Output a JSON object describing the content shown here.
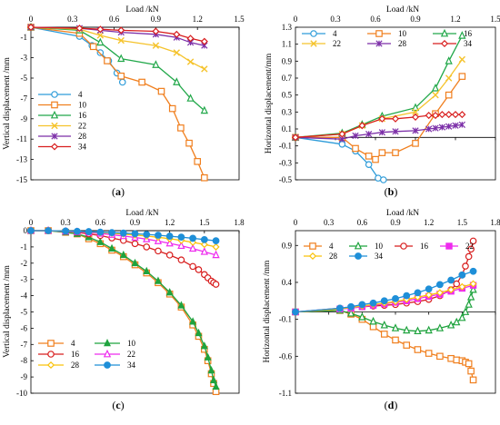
{
  "colors": {
    "4": "#2E9CD9",
    "10": "#F07F1E",
    "16": "#22A84A",
    "22": "#F5C32C",
    "28": "#7C2FA8",
    "34": "#D81E1E",
    "pink": "#EE2BEE",
    "yellow": "#F9C20A",
    "blue": "#1E8FD8",
    "darkgreen": "#1FA33E"
  },
  "chart_data": [
    {
      "type": "line",
      "label": "(a)",
      "title": "Load /kN",
      "xlabel": "Load /kN",
      "ylabel": "Vertical displacement /mm",
      "xlim": [
        0,
        1.5
      ],
      "ylim": [
        -15,
        0
      ],
      "xticks": [
        "0",
        "0.3",
        "0.6",
        "0.9",
        "1.2",
        "1.5"
      ],
      "yticks": [
        "-1",
        "-3",
        "-5",
        "-7",
        "-9",
        "-11",
        "-13",
        "-15"
      ],
      "legend": "bottom-left",
      "series": [
        {
          "name": "4",
          "marker": "circle",
          "x": [
            0,
            0.35,
            0.44,
            0.5,
            0.56,
            0.62,
            0.66
          ],
          "y": [
            0,
            -0.9,
            -1.8,
            -2.5,
            -3.3,
            -4.5,
            -5.4
          ]
        },
        {
          "name": "10",
          "marker": "square",
          "x": [
            0,
            0.35,
            0.45,
            0.55,
            0.65,
            0.8,
            0.94,
            1.02,
            1.08,
            1.14,
            1.2,
            1.25
          ],
          "y": [
            0,
            -0.6,
            -1.9,
            -3.3,
            -4.8,
            -5.4,
            -6.3,
            -8.0,
            -9.9,
            -11.4,
            -13.2,
            -14.8
          ]
        },
        {
          "name": "16",
          "marker": "triangle",
          "x": [
            0,
            0.35,
            0.5,
            0.65,
            0.9,
            1.05,
            1.15,
            1.25
          ],
          "y": [
            0,
            -0.3,
            -1.5,
            -3.1,
            -3.7,
            -5.4,
            -7.0,
            -8.2
          ]
        },
        {
          "name": "22",
          "marker": "x",
          "x": [
            0,
            0.35,
            0.5,
            0.65,
            0.9,
            1.05,
            1.15,
            1.25
          ],
          "y": [
            0,
            -0.2,
            -0.8,
            -1.3,
            -1.8,
            -2.5,
            -3.4,
            -4.1
          ]
        },
        {
          "name": "28",
          "marker": "asterisk",
          "x": [
            0,
            0.35,
            0.5,
            0.65,
            0.9,
            1.05,
            1.15,
            1.25
          ],
          "y": [
            0,
            -0.1,
            -0.3,
            -0.5,
            -0.7,
            -1.0,
            -1.5,
            -1.8
          ]
        },
        {
          "name": "34",
          "marker": "diamond",
          "x": [
            0,
            0.35,
            0.5,
            0.65,
            0.9,
            1.05,
            1.15,
            1.25
          ],
          "y": [
            0,
            -0.1,
            -0.2,
            -0.3,
            -0.4,
            -0.7,
            -1.1,
            -1.4
          ]
        }
      ]
    },
    {
      "type": "line",
      "label": "(b)",
      "title": "Load /kN",
      "xlabel": "Load /kN",
      "ylabel": "Horizontal displacement/mm",
      "xlim": [
        0,
        1.5
      ],
      "ylim": [
        -0.5,
        1.3
      ],
      "xticks": [
        "0",
        "0.3",
        "0.6",
        "0.9",
        "1.2",
        "1.5"
      ],
      "yticks": [
        "1.3",
        "1.1",
        "0.9",
        "0.7",
        "0.5",
        "0.3",
        "0.1",
        "-0.1",
        "-0.3",
        "-0.5"
      ],
      "legend": "top-left",
      "series": [
        {
          "name": "4",
          "marker": "circle",
          "x": [
            0,
            0.35,
            0.45,
            0.55,
            0.62,
            0.66
          ],
          "y": [
            0,
            -0.08,
            -0.16,
            -0.32,
            -0.48,
            -0.5
          ]
        },
        {
          "name": "10",
          "marker": "square",
          "x": [
            0,
            0.35,
            0.45,
            0.55,
            0.6,
            0.65,
            0.75,
            0.9,
            1.05,
            1.15,
            1.25
          ],
          "y": [
            0,
            0.0,
            -0.13,
            -0.22,
            -0.26,
            -0.18,
            -0.18,
            -0.07,
            0.28,
            0.5,
            0.72
          ]
        },
        {
          "name": "16",
          "marker": "triangle",
          "x": [
            0,
            0.35,
            0.5,
            0.65,
            0.9,
            1.05,
            1.15,
            1.25
          ],
          "y": [
            0,
            0.05,
            0.15,
            0.25,
            0.35,
            0.58,
            0.9,
            1.2
          ]
        },
        {
          "name": "22",
          "marker": "x",
          "x": [
            0,
            0.35,
            0.5,
            0.65,
            0.9,
            1.05,
            1.15,
            1.25
          ],
          "y": [
            0,
            0.04,
            0.14,
            0.22,
            0.3,
            0.5,
            0.7,
            0.92
          ]
        },
        {
          "name": "28",
          "marker": "asterisk",
          "x": [
            0,
            0.35,
            0.45,
            0.55,
            0.65,
            0.75,
            0.9,
            1.0,
            1.05,
            1.1,
            1.15,
            1.2,
            1.25
          ],
          "y": [
            0,
            -0.02,
            0.02,
            0.04,
            0.06,
            0.07,
            0.08,
            0.1,
            0.11,
            0.12,
            0.13,
            0.14,
            0.15
          ]
        },
        {
          "name": "34",
          "marker": "diamond",
          "x": [
            0,
            0.35,
            0.5,
            0.65,
            0.75,
            0.9,
            1.0,
            1.05,
            1.1,
            1.15,
            1.2,
            1.25
          ],
          "y": [
            0,
            0.04,
            0.14,
            0.22,
            0.22,
            0.24,
            0.26,
            0.26,
            0.27,
            0.27,
            0.27,
            0.27
          ]
        }
      ]
    },
    {
      "type": "line",
      "label": "(c)",
      "title": "Load /kN",
      "xlabel": "Load /kN",
      "ylabel": "Vertical displacement /mm",
      "xlim": [
        0,
        1.8
      ],
      "ylim": [
        -10,
        0
      ],
      "xticks": [
        "0",
        "0.3",
        "0.6",
        "0.9",
        "1.2",
        "1.5",
        "1.8"
      ],
      "yticks": [
        "0",
        "-1",
        "-2",
        "-3",
        "-4",
        "-5",
        "-6",
        "-7",
        "-8",
        "-9",
        "-10"
      ],
      "legend": "bottom-left",
      "series": [
        {
          "name": "4",
          "marker": "square",
          "color": "#F07F1E",
          "x": [
            0,
            0.15,
            0.3,
            0.4,
            0.5,
            0.6,
            0.7,
            0.8,
            0.9,
            1.0,
            1.1,
            1.2,
            1.3,
            1.4,
            1.45,
            1.5,
            1.53,
            1.56,
            1.58,
            1.6
          ],
          "y": [
            0,
            0,
            -0.1,
            -0.2,
            -0.5,
            -0.8,
            -1.2,
            -1.6,
            -2.1,
            -2.6,
            -3.2,
            -3.9,
            -4.7,
            -5.8,
            -6.5,
            -7.3,
            -8.0,
            -8.8,
            -9.4,
            -9.9
          ]
        },
        {
          "name": "10",
          "marker": "triangle",
          "color": "#1FA33E",
          "x": [
            0,
            0.15,
            0.3,
            0.4,
            0.5,
            0.6,
            0.7,
            0.8,
            0.9,
            1.0,
            1.1,
            1.2,
            1.3,
            1.4,
            1.45,
            1.5,
            1.53,
            1.56,
            1.58,
            1.6
          ],
          "y": [
            0,
            0,
            -0.1,
            -0.2,
            -0.4,
            -0.7,
            -1.1,
            -1.5,
            -2.0,
            -2.5,
            -3.1,
            -3.8,
            -4.6,
            -5.6,
            -6.3,
            -7.1,
            -7.8,
            -8.6,
            -9.2,
            -9.6
          ]
        },
        {
          "name": "16",
          "marker": "circle-open",
          "color": "#D81E1E",
          "x": [
            0,
            0.15,
            0.3,
            0.4,
            0.5,
            0.6,
            0.7,
            0.8,
            0.9,
            1.0,
            1.1,
            1.2,
            1.3,
            1.4,
            1.45,
            1.5,
            1.53,
            1.56,
            1.58,
            1.6
          ],
          "y": [
            0,
            0,
            -0.05,
            -0.1,
            -0.2,
            -0.3,
            -0.45,
            -0.6,
            -0.8,
            -1.0,
            -1.25,
            -1.5,
            -1.8,
            -2.2,
            -2.4,
            -2.7,
            -2.9,
            -3.1,
            -3.2,
            -3.3
          ]
        },
        {
          "name": "22",
          "marker": "triangle-open",
          "color": "#EE2BEE",
          "x": [
            0,
            0.15,
            0.3,
            0.4,
            0.5,
            0.6,
            0.7,
            0.8,
            0.9,
            1.0,
            1.1,
            1.2,
            1.3,
            1.4,
            1.5,
            1.6
          ],
          "y": [
            0,
            0,
            -0.05,
            -0.08,
            -0.12,
            -0.18,
            -0.25,
            -0.33,
            -0.42,
            -0.52,
            -0.64,
            -0.78,
            -0.93,
            -1.1,
            -1.3,
            -1.5
          ]
        },
        {
          "name": "28",
          "marker": "diamond",
          "color": "#F9C20A",
          "x": [
            0,
            0.15,
            0.3,
            0.4,
            0.5,
            0.6,
            0.7,
            0.8,
            0.9,
            1.0,
            1.1,
            1.2,
            1.3,
            1.4,
            1.5,
            1.6
          ],
          "y": [
            0,
            0,
            -0.03,
            -0.05,
            -0.08,
            -0.12,
            -0.16,
            -0.21,
            -0.27,
            -0.33,
            -0.41,
            -0.5,
            -0.6,
            -0.72,
            -0.85,
            -1.0
          ]
        },
        {
          "name": "34",
          "marker": "circle",
          "color": "#1E8FD8",
          "x": [
            0,
            0.15,
            0.3,
            0.4,
            0.5,
            0.6,
            0.7,
            0.8,
            0.9,
            1.0,
            1.1,
            1.2,
            1.3,
            1.4,
            1.5,
            1.6
          ],
          "y": [
            0,
            0,
            -0.02,
            -0.04,
            -0.06,
            -0.09,
            -0.12,
            -0.15,
            -0.19,
            -0.23,
            -0.28,
            -0.34,
            -0.4,
            -0.47,
            -0.55,
            -0.62
          ]
        }
      ]
    },
    {
      "type": "line",
      "label": "(d)",
      "title": "Load /kN",
      "xlabel": "Load /kN",
      "ylabel": "Horizontal displacement /mm",
      "xlim": [
        0,
        1.8
      ],
      "ylim": [
        -1.1,
        1.1
      ],
      "xticks": [
        "0",
        "0.3",
        "0.6",
        "0.9",
        "1.2",
        "1.5",
        "1.8"
      ],
      "yticks": [
        "0.9",
        "0.4",
        "-0.1",
        "-0.6",
        "-1.1"
      ],
      "legend": "top",
      "series": [
        {
          "name": "4",
          "marker": "square",
          "color": "#F07F1E",
          "x": [
            0,
            0.4,
            0.5,
            0.6,
            0.7,
            0.8,
            0.9,
            1.0,
            1.1,
            1.2,
            1.3,
            1.4,
            1.45,
            1.5,
            1.53,
            1.56,
            1.58,
            1.6
          ],
          "y": [
            0,
            0.02,
            -0.03,
            -0.1,
            -0.2,
            -0.3,
            -0.38,
            -0.45,
            -0.51,
            -0.56,
            -0.6,
            -0.63,
            -0.65,
            -0.66,
            -0.68,
            -0.7,
            -0.8,
            -0.92
          ]
        },
        {
          "name": "10",
          "marker": "triangle-open",
          "color": "#1FA33E",
          "x": [
            0,
            0.4,
            0.5,
            0.6,
            0.7,
            0.8,
            0.9,
            1.0,
            1.1,
            1.2,
            1.3,
            1.4,
            1.45,
            1.5,
            1.53,
            1.56,
            1.58,
            1.6
          ],
          "y": [
            0,
            0.02,
            -0.02,
            -0.07,
            -0.13,
            -0.18,
            -0.22,
            -0.25,
            -0.26,
            -0.25,
            -0.22,
            -0.18,
            -0.14,
            -0.08,
            0.0,
            0.1,
            0.2,
            0.3
          ]
        },
        {
          "name": "16",
          "marker": "circle-open",
          "color": "#D81E1E",
          "x": [
            0,
            0.4,
            0.5,
            0.6,
            0.7,
            0.8,
            0.9,
            1.0,
            1.1,
            1.2,
            1.3,
            1.4,
            1.45,
            1.5,
            1.53,
            1.56,
            1.58,
            1.6
          ],
          "y": [
            0,
            0.05,
            0.06,
            0.07,
            0.08,
            0.09,
            0.1,
            0.12,
            0.14,
            0.17,
            0.22,
            0.3,
            0.38,
            0.5,
            0.62,
            0.75,
            0.85,
            0.96
          ]
        },
        {
          "name": "22",
          "marker": "square-solid",
          "color": "#EE2BEE",
          "x": [
            0,
            0.4,
            0.5,
            0.6,
            0.7,
            0.8,
            0.9,
            1.0,
            1.1,
            1.2,
            1.3,
            1.4,
            1.5,
            1.6
          ],
          "y": [
            0,
            0.04,
            0.05,
            0.07,
            0.09,
            0.11,
            0.13,
            0.15,
            0.18,
            0.21,
            0.24,
            0.28,
            0.32,
            0.36
          ]
        },
        {
          "name": "28",
          "marker": "diamond",
          "color": "#F9C20A",
          "x": [
            0,
            0.4,
            0.5,
            0.6,
            0.7,
            0.8,
            0.9,
            1.0,
            1.1,
            1.2,
            1.3,
            1.4,
            1.5,
            1.6
          ],
          "y": [
            0,
            0.04,
            0.06,
            0.08,
            0.1,
            0.12,
            0.14,
            0.17,
            0.2,
            0.23,
            0.26,
            0.3,
            0.34,
            0.38
          ]
        },
        {
          "name": "34",
          "marker": "circle",
          "color": "#1E8FD8",
          "x": [
            0,
            0.4,
            0.5,
            0.6,
            0.7,
            0.8,
            0.9,
            1.0,
            1.1,
            1.2,
            1.3,
            1.4,
            1.5,
            1.6
          ],
          "y": [
            0,
            0.05,
            0.07,
            0.1,
            0.12,
            0.15,
            0.18,
            0.22,
            0.26,
            0.31,
            0.37,
            0.43,
            0.5,
            0.55
          ]
        }
      ]
    }
  ]
}
